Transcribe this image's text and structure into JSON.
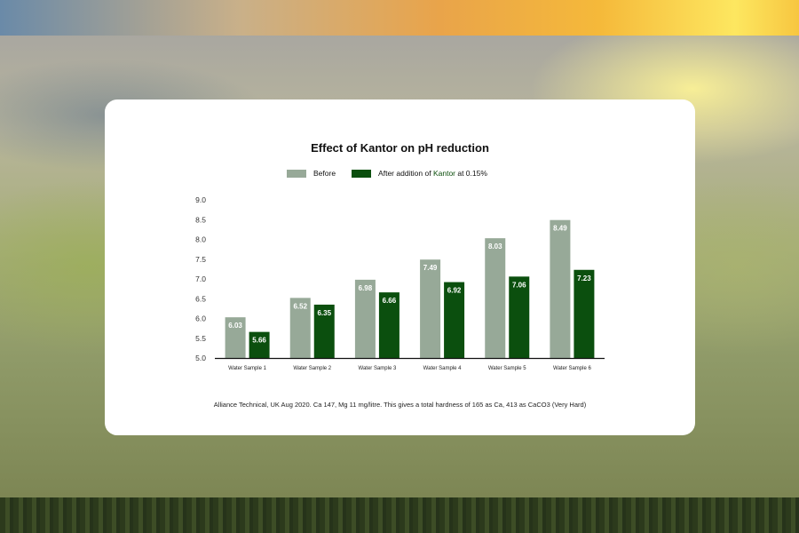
{
  "chart_data": {
    "type": "bar",
    "title": "Effect of Kantor on pH reduction",
    "categories": [
      "Water Sample 1",
      "Water Sample 2",
      "Water Sample 3",
      "Water Sample 4",
      "Water Sample 5",
      "Water Sample 6"
    ],
    "series": [
      {
        "name": "Before",
        "color": "#97a998",
        "values": [
          6.03,
          6.52,
          6.98,
          7.49,
          8.03,
          8.49
        ]
      },
      {
        "name": "After addition of Kantor at 0.15%",
        "color": "#0b4f0e",
        "values": [
          5.66,
          6.35,
          6.66,
          6.92,
          7.06,
          7.23
        ]
      }
    ],
    "legend": {
      "before_label": "Before",
      "after_prefix": "After addition of ",
      "after_brand": "Kantor",
      "after_suffix": " at 0.15%",
      "placement": "top-center"
    },
    "yticks": [
      "5.0",
      "5.5",
      "6.0",
      "6.5",
      "7.0",
      "7.5",
      "8.0",
      "8.5",
      "9.0"
    ],
    "ylim": [
      5.0,
      9.0
    ],
    "xlabel": "",
    "ylabel": "",
    "grid": false,
    "footnote": "Alliance Technical, UK Aug 2020. Ca 147, Mg 11 mg/litre. This gives a total hardness of 165 as Ca, 413 as CaCO3 (Very Hard)"
  }
}
